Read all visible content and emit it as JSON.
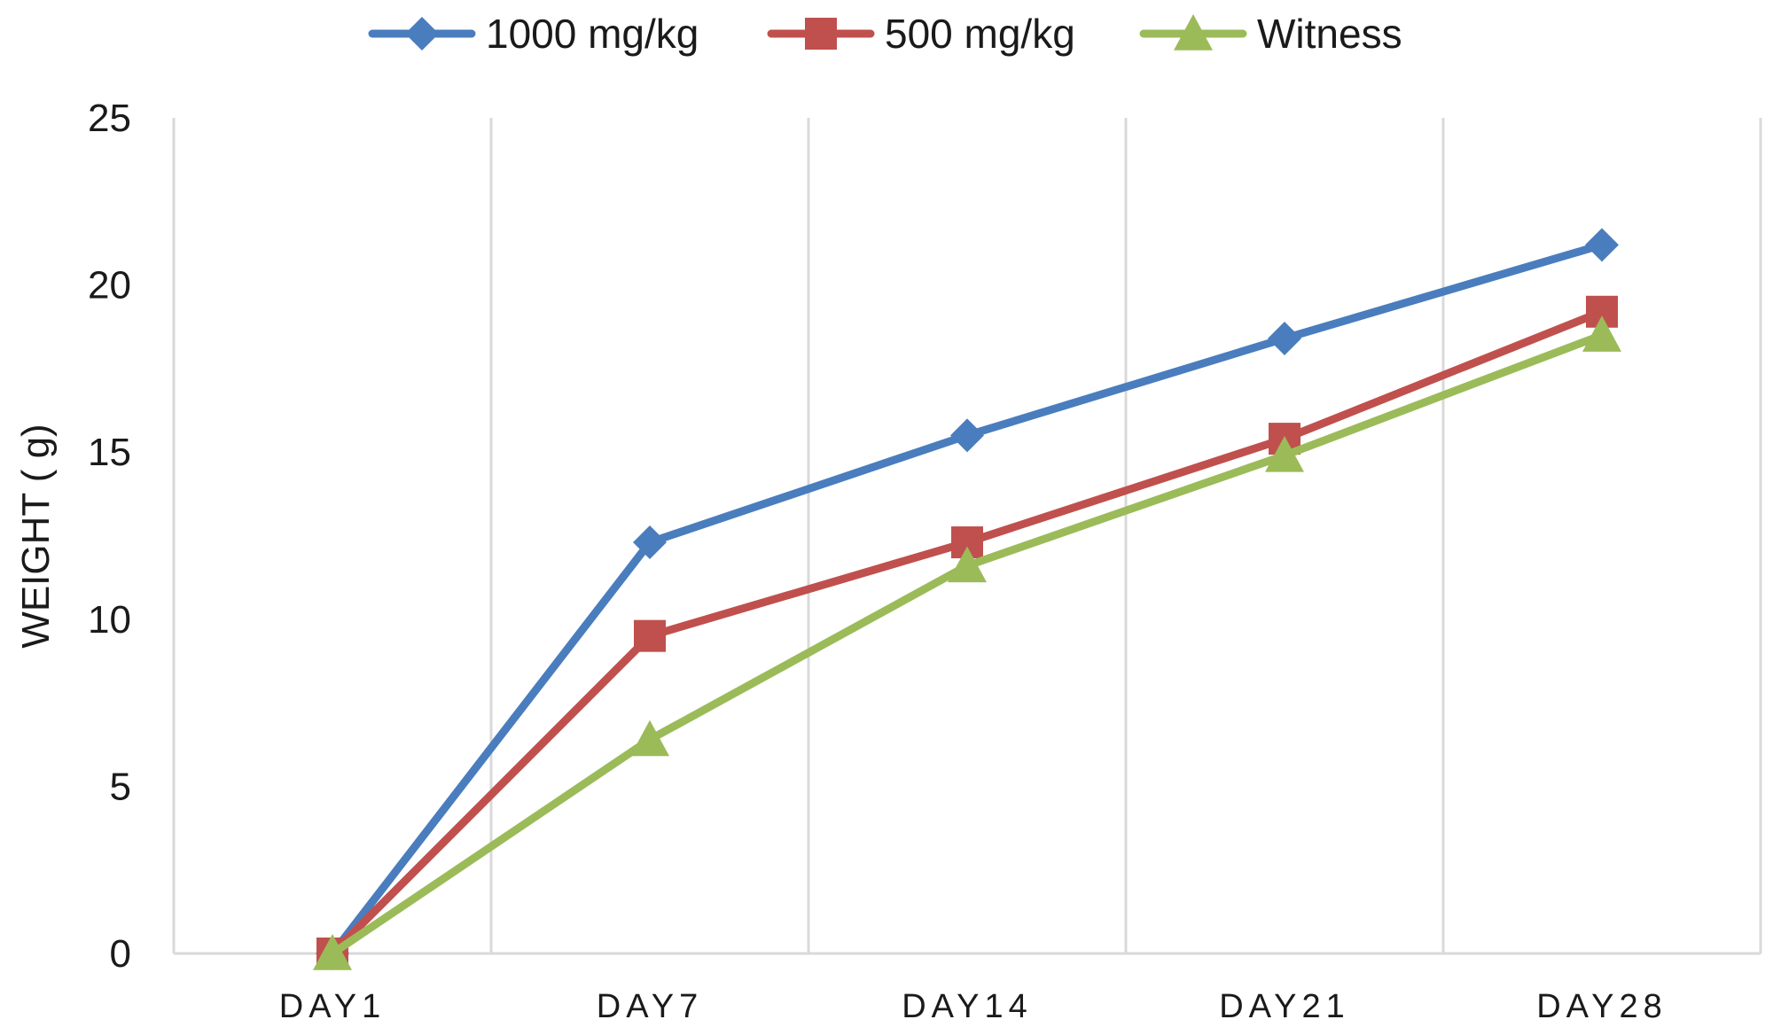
{
  "chart_data": {
    "type": "line",
    "title": "",
    "xlabel": "",
    "ylabel": "WEIGHT ( g)",
    "categories": [
      "DAY1",
      "DAY7",
      "DAY14",
      "DAY21",
      "DAY28"
    ],
    "ylim": [
      0,
      25
    ],
    "yticks": [
      "0",
      "5",
      "10",
      "15",
      "20",
      "25"
    ],
    "grid": "vertical",
    "legend_position": "top-center",
    "series": [
      {
        "name": "1000 mg/kg",
        "color": "#4a7dbd",
        "marker": "diamond",
        "values": [
          0,
          12.3,
          15.5,
          18.4,
          21.2
        ]
      },
      {
        "name": "500 mg/kg",
        "color": "#c0504d",
        "marker": "square",
        "values": [
          0,
          9.5,
          12.3,
          15.4,
          19.2
        ]
      },
      {
        "name": "Witness",
        "color": "#9bbb59",
        "marker": "triangle",
        "values": [
          0,
          6.4,
          11.6,
          14.9,
          18.5
        ]
      }
    ]
  }
}
